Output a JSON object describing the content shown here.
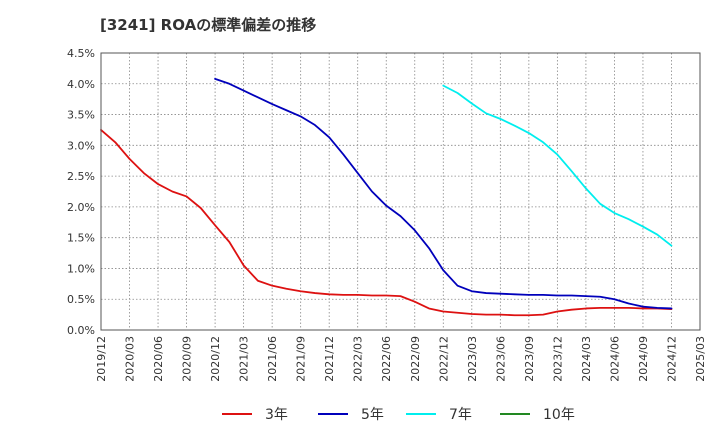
{
  "chart_data": {
    "type": "line",
    "title": "[3241]  ROAの標準偏差の推移",
    "x_tick_labels": [
      "2019/12",
      "2020/03",
      "2020/06",
      "2020/09",
      "2020/12",
      "2021/03",
      "2021/06",
      "2021/09",
      "2021/12",
      "2022/03",
      "2022/06",
      "2022/09",
      "2022/12",
      "2023/03",
      "2023/06",
      "2023/09",
      "2023/12",
      "2024/03",
      "2024/06",
      "2024/09",
      "2024/12",
      "2025/03"
    ],
    "y_tick_labels": [
      "0.0%",
      "0.5%",
      "1.0%",
      "1.5%",
      "2.0%",
      "2.5%",
      "3.0%",
      "3.5%",
      "4.0%",
      "4.5%"
    ],
    "ylim": [
      0,
      4.5
    ],
    "y_unit": "%",
    "grid": true,
    "legend_position": "bottom",
    "series": [
      {
        "name": "3年",
        "color": "#dd1111",
        "x": [
          0,
          0.5,
          1,
          1.5,
          2,
          2.5,
          3,
          3.5,
          4,
          4.5,
          5,
          5.5,
          6,
          6.5,
          7,
          7.5,
          8,
          8.5,
          9,
          9.5,
          10,
          10.5,
          11,
          11.5,
          12,
          12.5,
          13,
          13.5,
          14,
          14.5,
          15,
          15.5,
          16,
          16.5,
          17,
          17.5,
          18,
          18.5,
          19,
          19.5,
          20
        ],
        "values": [
          3.25,
          3.05,
          2.78,
          2.55,
          2.37,
          2.25,
          2.17,
          1.98,
          1.7,
          1.43,
          1.05,
          0.8,
          0.72,
          0.67,
          0.63,
          0.6,
          0.58,
          0.57,
          0.57,
          0.56,
          0.56,
          0.55,
          0.46,
          0.35,
          0.3,
          0.28,
          0.26,
          0.25,
          0.25,
          0.24,
          0.24,
          0.25,
          0.3,
          0.33,
          0.35,
          0.36,
          0.36,
          0.36,
          0.35,
          0.35,
          0.34
        ]
      },
      {
        "name": "5年",
        "color": "#0000bb",
        "x": [
          4,
          4.5,
          5,
          5.5,
          6,
          6.5,
          7,
          7.5,
          8,
          8.5,
          9,
          9.5,
          10,
          10.5,
          11,
          11.5,
          12,
          12.5,
          13,
          13.5,
          14,
          14.5,
          15,
          15.5,
          16,
          16.5,
          17,
          17.5,
          18,
          18.5,
          19,
          19.5,
          20
        ],
        "values": [
          4.08,
          4.0,
          3.89,
          3.78,
          3.67,
          3.57,
          3.47,
          3.33,
          3.13,
          2.85,
          2.55,
          2.25,
          2.02,
          1.85,
          1.62,
          1.33,
          0.97,
          0.72,
          0.63,
          0.6,
          0.59,
          0.58,
          0.57,
          0.57,
          0.56,
          0.56,
          0.55,
          0.54,
          0.5,
          0.43,
          0.38,
          0.36,
          0.35
        ]
      },
      {
        "name": "7年",
        "color": "#00eeee",
        "x": [
          12,
          12.5,
          13,
          13.5,
          14,
          14.5,
          15,
          15.5,
          16,
          16.5,
          17,
          17.5,
          18,
          18.5,
          19,
          19.5,
          20
        ],
        "values": [
          3.97,
          3.85,
          3.68,
          3.52,
          3.43,
          3.32,
          3.2,
          3.05,
          2.85,
          2.58,
          2.3,
          2.05,
          1.9,
          1.8,
          1.68,
          1.55,
          1.37
        ]
      },
      {
        "name": "10年",
        "color": "#228822",
        "x": [],
        "values": []
      }
    ]
  }
}
